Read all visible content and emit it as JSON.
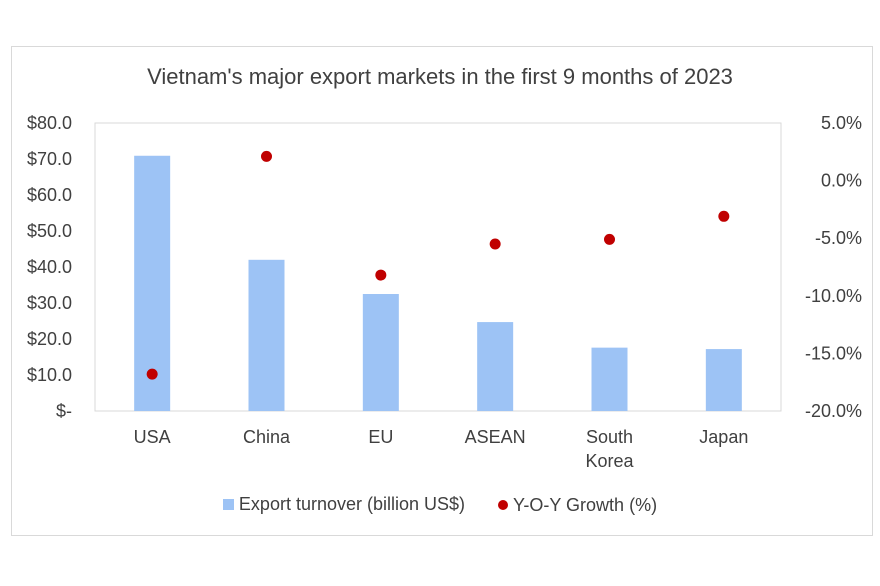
{
  "chart_data": {
    "type": "bar",
    "title": "Vietnam's major export markets in the first 9 months of 2023",
    "categories": [
      "USA",
      "China",
      "EU",
      "ASEAN",
      "South Korea",
      "Japan"
    ],
    "category_lines": [
      [
        "USA"
      ],
      [
        "China"
      ],
      [
        "EU"
      ],
      [
        "ASEAN"
      ],
      [
        "South",
        "Korea"
      ],
      [
        "Japan"
      ]
    ],
    "series": [
      {
        "name": "Export turnover (billion US$)",
        "type": "bar",
        "axis": "left",
        "color": "#9dc3f5",
        "values": [
          70.9,
          42.0,
          32.5,
          24.7,
          17.6,
          17.2
        ]
      },
      {
        "name": "Y-O-Y Growth (%)",
        "type": "scatter",
        "axis": "right",
        "color": "#c00000",
        "values": [
          -16.8,
          2.1,
          -8.2,
          -5.5,
          -5.1,
          -3.1
        ]
      }
    ],
    "y_left": {
      "ylim": [
        0,
        80
      ],
      "ticks": [
        0,
        10,
        20,
        30,
        40,
        50,
        60,
        70,
        80
      ],
      "tick_labels": [
        "$-",
        "$10.0",
        "$20.0",
        "$30.0",
        "$40.0",
        "$50.0",
        "$60.0",
        "$70.0",
        "$80.0"
      ]
    },
    "y_right": {
      "ylim": [
        -20,
        5
      ],
      "ticks": [
        -20,
        -15,
        -10,
        -5,
        0,
        5
      ],
      "tick_labels": [
        "-20.0%",
        "-15.0%",
        "-10.0%",
        "-5.0%",
        "0.0%",
        "5.0%"
      ]
    },
    "grid": false,
    "legend_position": "bottom"
  }
}
